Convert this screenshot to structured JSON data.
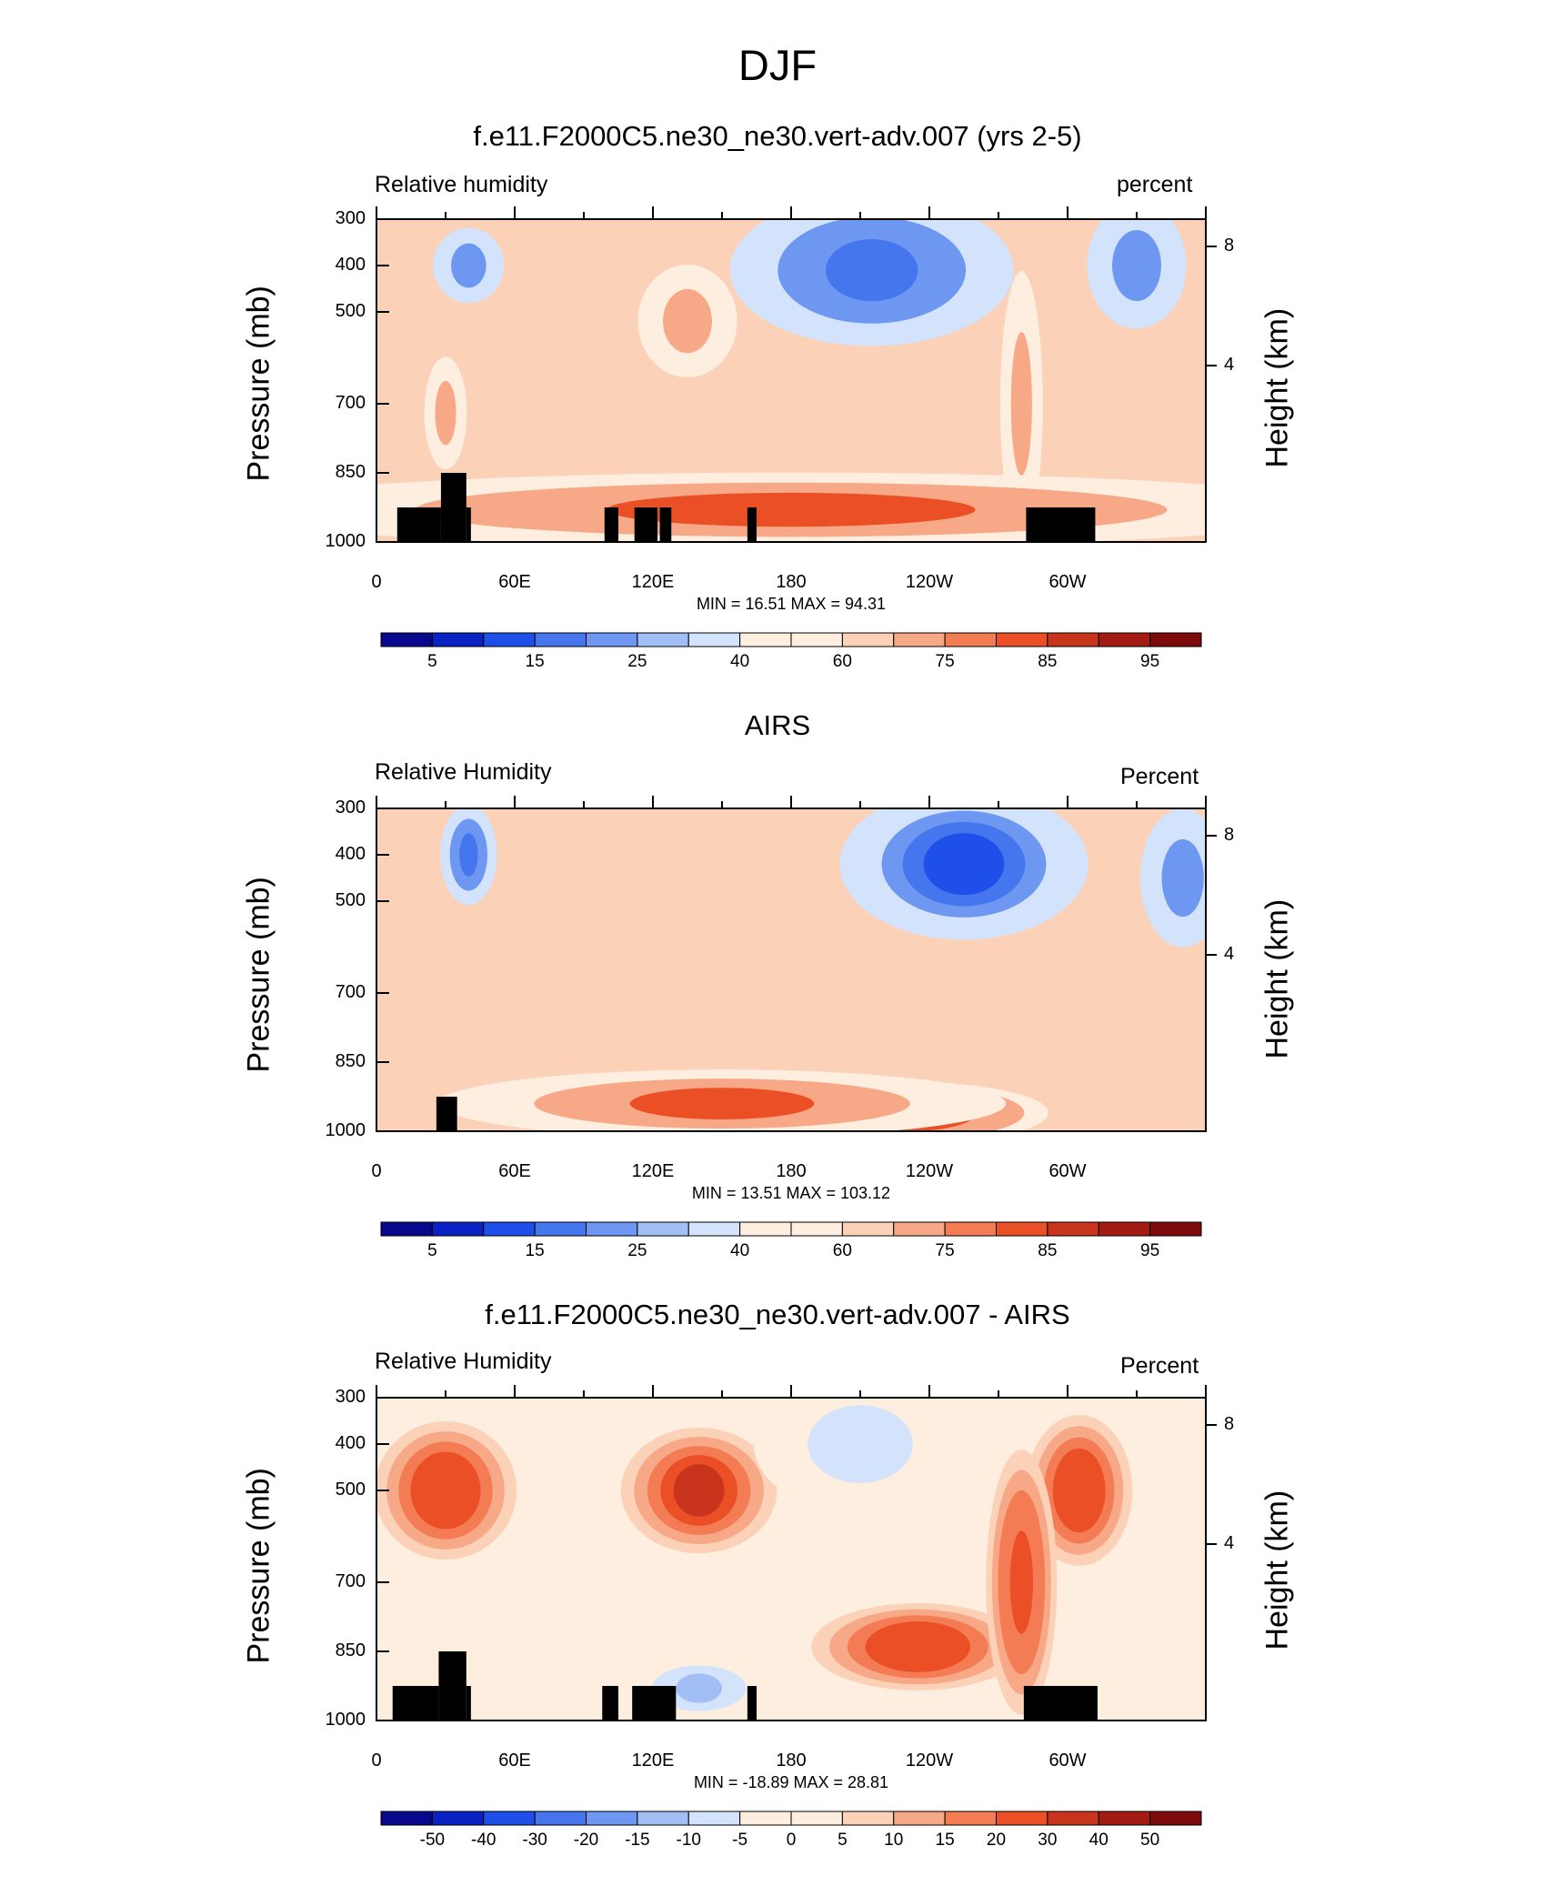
{
  "figure_title": "DJF",
  "colors": {
    "ramp": [
      "#08088c",
      "#0a21c4",
      "#1e4fe8",
      "#4576ee",
      "#6d97f0",
      "#a2bff5",
      "#d3e3fb",
      "#fdeee0",
      "#fbd1b8",
      "#f7a887",
      "#f47c55",
      "#ea4f26",
      "#c8351c",
      "#a31b12",
      "#7d0b0b"
    ],
    "topography": "#000000"
  },
  "chart_data": [
    {
      "type": "contour",
      "title": "f.e11.F2000C5.ne30_ne30.vert-adv.007 (yrs 2-5)",
      "left_label": "Relative humidity",
      "right_label": "percent",
      "ylabel": "Pressure (mb)",
      "ylabel_right": "Height (km)",
      "y_ticks": [
        "300",
        "400",
        "500",
        "700",
        "850",
        "1000"
      ],
      "right_ticks": [
        "8",
        "4"
      ],
      "x_ticks": [
        "0",
        "60E",
        "120E",
        "180",
        "120W",
        "60W"
      ],
      "xlim": [
        0,
        360
      ],
      "ylim": [
        1000,
        300
      ],
      "minmax": "MIN =  16.51  MAX =  94.31",
      "colorbar_ticks": [
        "5",
        "15",
        "25",
        "40",
        "60",
        "75",
        "85",
        "95"
      ],
      "fields": [
        {
          "lon": 215,
          "p": 410,
          "value": 18,
          "lon_spread": 40,
          "p_spread": 110
        },
        {
          "lon": 330,
          "p": 400,
          "value": 35,
          "lon_spread": 14,
          "p_spread": 90
        },
        {
          "lon": 40,
          "p": 400,
          "value": 32,
          "lon_spread": 10,
          "p_spread": 50
        },
        {
          "lon": 135,
          "p": 520,
          "value": 82,
          "lon_spread": 14,
          "p_spread": 80
        },
        {
          "lon": 30,
          "p": 720,
          "value": 82,
          "lon_spread": 6,
          "p_spread": 80
        },
        {
          "lon": 280,
          "p": 700,
          "value": 85,
          "lon_spread": 6,
          "p_spread": 200
        },
        {
          "lon": 180,
          "p": 930,
          "value": 90,
          "lon_spread": 160,
          "p_spread": 50
        }
      ],
      "topography": [
        {
          "lon_start": 9,
          "lon_end": 28,
          "p_top": 925
        },
        {
          "lon_start": 28,
          "lon_end": 39,
          "p_top": 850
        },
        {
          "lon_start": 39,
          "lon_end": 41,
          "p_top": 925
        },
        {
          "lon_start": 99,
          "lon_end": 105,
          "p_top": 925
        },
        {
          "lon_start": 112,
          "lon_end": 122,
          "p_top": 925
        },
        {
          "lon_start": 123,
          "lon_end": 128,
          "p_top": 925
        },
        {
          "lon_start": 161,
          "lon_end": 165,
          "p_top": 925
        },
        {
          "lon_start": 282,
          "lon_end": 312,
          "p_top": 925
        }
      ]
    },
    {
      "type": "contour",
      "title": "AIRS",
      "left_label": "Relative Humidity",
      "right_label": "Percent",
      "ylabel": "Pressure (mb)",
      "ylabel_right": "Height (km)",
      "y_ticks": [
        "300",
        "400",
        "500",
        "700",
        "850",
        "1000"
      ],
      "right_ticks": [
        "8",
        "4"
      ],
      "x_ticks": [
        "0",
        "60E",
        "120E",
        "180",
        "120W",
        "60W"
      ],
      "xlim": [
        0,
        360
      ],
      "ylim": [
        1000,
        300
      ],
      "minmax": "MIN =  13.51  MAX = 103.12",
      "colorbar_ticks": [
        "5",
        "15",
        "25",
        "40",
        "60",
        "75",
        "85",
        "95"
      ],
      "fields": [
        {
          "lon": 255,
          "p": 420,
          "value": 15,
          "lon_spread": 35,
          "p_spread": 110
        },
        {
          "lon": 40,
          "p": 400,
          "value": 20,
          "lon_spread": 8,
          "p_spread": 70
        },
        {
          "lon": 350,
          "p": 450,
          "value": 32,
          "lon_spread": 12,
          "p_spread": 100
        },
        {
          "lon": 230,
          "p": 960,
          "value": 98,
          "lon_spread": 40,
          "p_spread": 40
        },
        {
          "lon": 150,
          "p": 940,
          "value": 88,
          "lon_spread": 80,
          "p_spread": 45
        }
      ],
      "topography": [
        {
          "lon_start": 26,
          "lon_end": 35,
          "p_top": 925
        }
      ]
    },
    {
      "type": "contour",
      "title": "f.e11.F2000C5.ne30_ne30.vert-adv.007 - AIRS",
      "left_label": "Relative Humidity",
      "right_label": "Percent",
      "ylabel": "Pressure (mb)",
      "ylabel_right": "Height (km)",
      "y_ticks": [
        "300",
        "400",
        "500",
        "700",
        "850",
        "1000"
      ],
      "right_ticks": [
        "8",
        "4"
      ],
      "x_ticks": [
        "0",
        "60E",
        "120E",
        "180",
        "120W",
        "60W"
      ],
      "xlim": [
        0,
        360
      ],
      "ylim": [
        1000,
        300
      ],
      "minmax": "MIN = -18.89  MAX =  28.81",
      "colorbar_ticks": [
        "-50",
        "-40",
        "-30",
        "-20",
        "-15",
        "-10",
        "-5",
        "0",
        "5",
        "10",
        "15",
        "20",
        "30",
        "40",
        "50"
      ],
      "fields": [
        {
          "lon": 140,
          "p": 500,
          "value": 22,
          "lon_spread": 22,
          "p_spread": 90
        },
        {
          "lon": 30,
          "p": 500,
          "value": 20,
          "lon_spread": 20,
          "p_spread": 100
        },
        {
          "lon": 305,
          "p": 500,
          "value": 20,
          "lon_spread": 15,
          "p_spread": 110
        },
        {
          "lon": 235,
          "p": 840,
          "value": 20,
          "lon_spread": 30,
          "p_spread": 60
        },
        {
          "lon": 280,
          "p": 700,
          "value": 18,
          "lon_spread": 10,
          "p_spread": 200
        },
        {
          "lon": 210,
          "p": 400,
          "value": -8,
          "lon_spread": 30,
          "p_spread": 100
        },
        {
          "lon": 140,
          "p": 930,
          "value": -10,
          "lon_spread": 20,
          "p_spread": 40
        }
      ],
      "topography": [
        {
          "lon_start": 7,
          "lon_end": 27,
          "p_top": 925
        },
        {
          "lon_start": 27,
          "lon_end": 39,
          "p_top": 850
        },
        {
          "lon_start": 39,
          "lon_end": 41,
          "p_top": 925
        },
        {
          "lon_start": 98,
          "lon_end": 105,
          "p_top": 925
        },
        {
          "lon_start": 111,
          "lon_end": 130,
          "p_top": 925
        },
        {
          "lon_start": 161,
          "lon_end": 165,
          "p_top": 925
        },
        {
          "lon_start": 281,
          "lon_end": 313,
          "p_top": 925
        }
      ]
    }
  ]
}
